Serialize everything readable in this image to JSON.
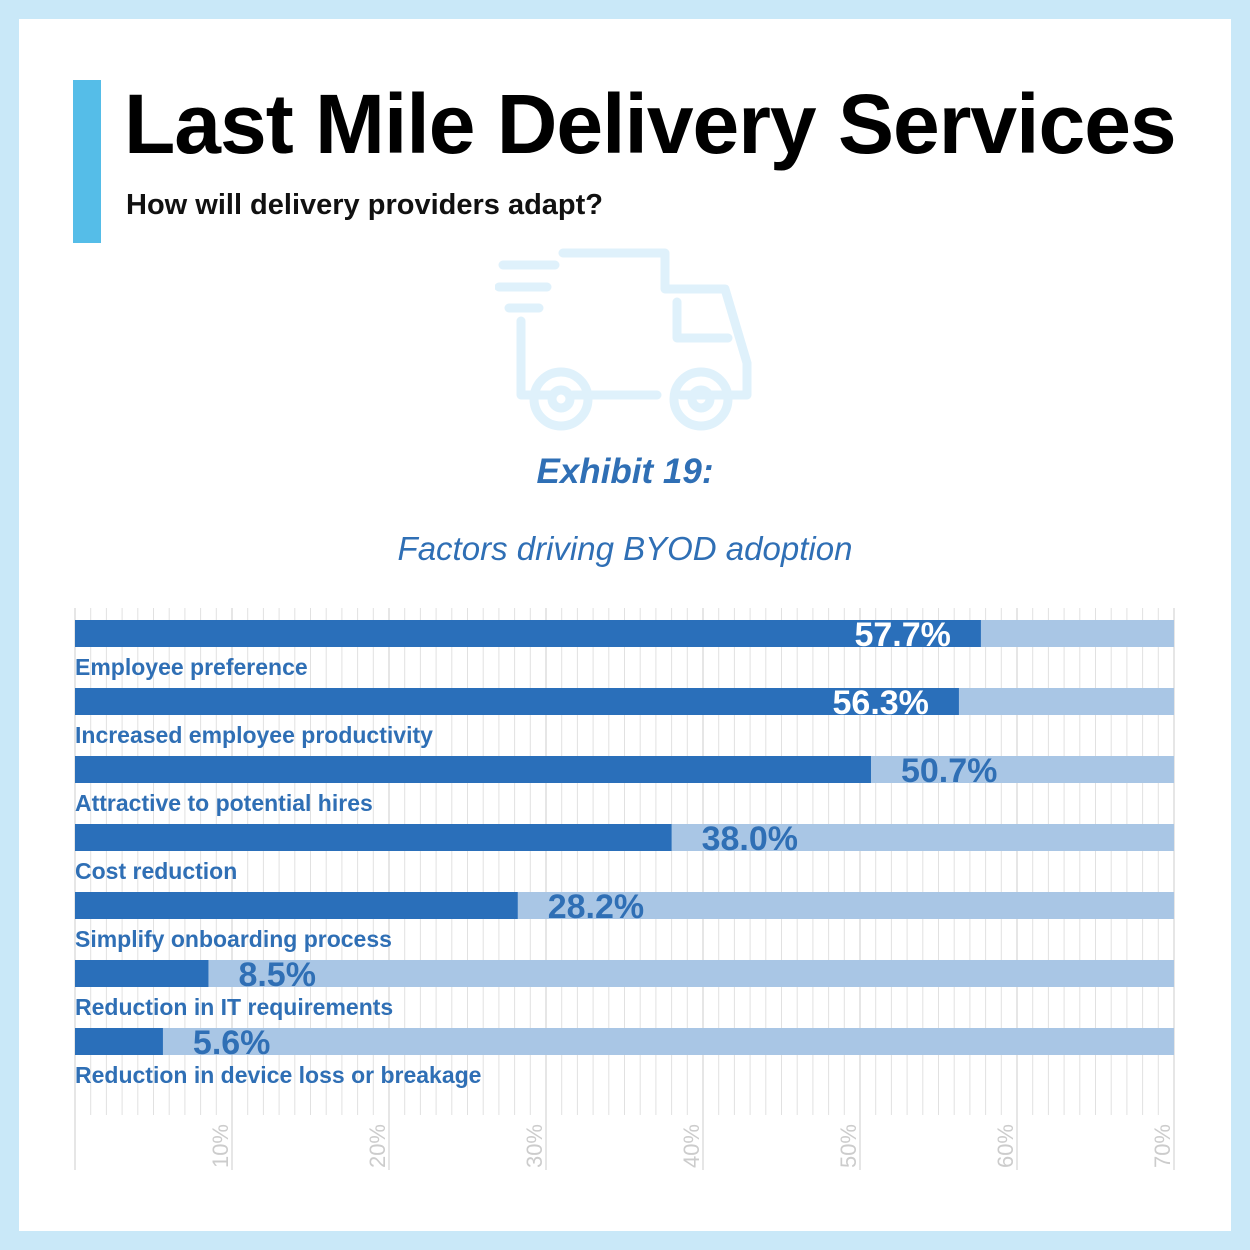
{
  "header": {
    "title": "Last Mile Delivery Services",
    "subtitle": "How will delivery providers adapt?",
    "illustration": "delivery-truck-icon"
  },
  "exhibit": {
    "label": "Exhibit 19:"
  },
  "colors": {
    "frame": "#c9e8f8",
    "accent": "#55bde8",
    "bar": "#2a6fba",
    "track": "#a9c6e5",
    "label": "#2f6fb5",
    "grid": "#e1e1e1",
    "tick": "#cccccc",
    "truck": "#dff1fb"
  },
  "chart_data": {
    "type": "bar",
    "orientation": "horizontal",
    "title": "Factors driving BYOD adoption",
    "categories": [
      "Employee preference",
      "Increased employee productivity",
      "Attractive to potential hires",
      "Cost reduction",
      "Simplify onboarding process",
      "Reduction in IT requirements",
      "Reduction in device loss or breakage"
    ],
    "values": [
      57.7,
      56.3,
      50.7,
      38.0,
      28.2,
      8.5,
      5.6
    ],
    "value_labels": [
      "57.7%",
      "56.3%",
      "50.7%",
      "38.0%",
      "28.2%",
      "8.5%",
      "5.6%"
    ],
    "xlim": [
      0,
      70
    ],
    "xticks": [
      10,
      20,
      30,
      40,
      50,
      60,
      70
    ],
    "xtick_labels": [
      "10%",
      "20%",
      "30%",
      "40%",
      "50%",
      "60%",
      "70%"
    ],
    "xlabel": "",
    "ylabel": "",
    "grid": true,
    "legend": "none"
  }
}
